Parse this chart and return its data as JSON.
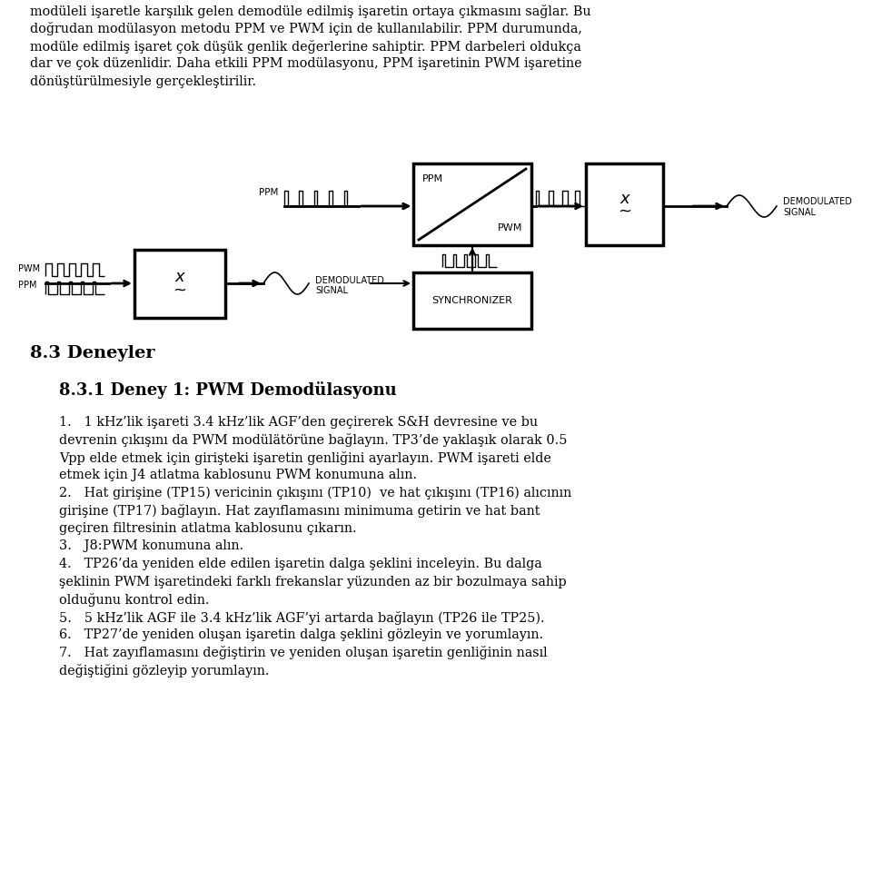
{
  "bg_color": "#ffffff",
  "figsize": [
    9.6,
    9.8
  ],
  "dpi": 100,
  "top_lines": [
    "modüleli işaretle karşılık gelen demodüle edilmiş işaretin ortaya çıkmasını sağlar. Bu",
    "doğrudan modülasyon metodu PPM ve PWM için de kullanılabilir. PPM durumunda,",
    "modüle edilmiş işaret çok düşük genlik değerlerine sahiptir. PPM darbeleri oldukça",
    "dar ve çok düzenlidir. Daha etkili PPM modülasyonu, PPM işaretinin PWM işaretine",
    "dönüştürülmesiyle gerçekleştirilir."
  ],
  "section_header": "8.3 Deneyler",
  "subsection_header": "8.3.1 Deney 1: PWM Demodülasyonu",
  "body_lines": [
    "1.   1 kHz’lik işareti 3.4 kHz’lik AGF’den geçirerek S&H devresine ve bu",
    "devrenin çıkışını da PWM modülätörüne bağlayın. TP3’de yaklaşık olarak 0.5",
    "Vpp elde etmek için girişteki işaretin genliğini ayarlayın. PWM işareti elde",
    "etmek için J4 atlatma kablosunu PWM konumuna alın.",
    "2.   Hat girişine (TP15) vericinin çıkışını (TP10)  ve hat çıkışını (TP16) alıcının",
    "girişine (TP17) bağlayın. Hat zayıflamasını minimuma getirin ve hat bant",
    "geçiren filtresinin atlatma kablosunu çıkarın.",
    "3.   J8:PWM konumuna alın.",
    "4.   TP26’da yeniden elde edilen işaretin dalga şeklini inceleyin. Bu dalga",
    "şeklinin PWM işaretindeki farklı frekanslar yüzunden az bir bozulmaya sahip",
    "olduğunu kontrol edin.",
    "5.   5 kHz’lik AGF ile 3.4 kHz’lik AGF’yi artarda bağlayın (TP26 ile TP25).",
    "6.   TP27’de yeniden oluşan işaretin dalga şeklini gözleyin ve yorumlayın.",
    "7.   Hat zayıflamasını değiştirin ve yeniden oluşan işaretin genliğinin nasıl",
    "değiştiğini gözleyip yorumlayın."
  ]
}
